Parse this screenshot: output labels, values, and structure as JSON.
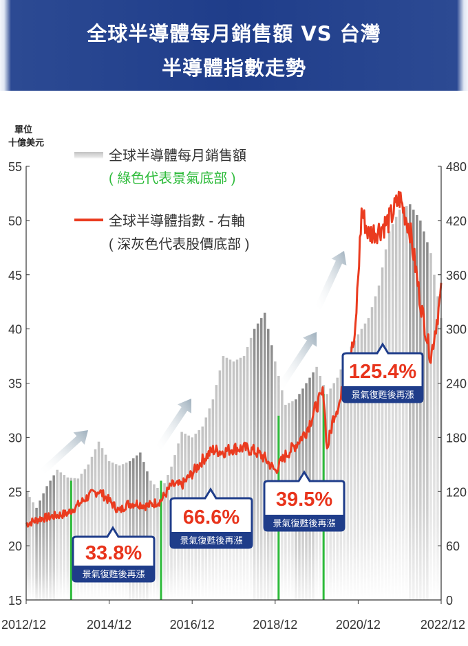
{
  "header": {
    "title_line1": "全球半導體每月銷售額 VS 台灣",
    "title_line2": "半導體指數走勢"
  },
  "colors": {
    "banner": "#1f3d8a",
    "bars": "#c9c9c9",
    "bars_dark": "#8f8f8f",
    "line": "#ea3b1f",
    "trough_green": "#2dbb3a",
    "badge_border": "#1f3d8a",
    "badge_text": "#e8341c",
    "arrow": "#a9b8c4"
  },
  "legend": {
    "bars_label": "全球半導體每月銷售額",
    "bars_note": "( 綠色代表景氣底部 )",
    "line_label": "全球半導體指數 - 右軸",
    "line_note": "( 深灰色代表股價底部 )"
  },
  "chart_data": {
    "type": "bar+line",
    "left_axis": {
      "unit_label": "單位\n十億美元",
      "ticks": [
        15,
        20,
        25,
        30,
        35,
        40,
        45,
        50,
        55
      ],
      "range": [
        15,
        55
      ]
    },
    "right_axis": {
      "ticks": [
        0,
        60,
        120,
        180,
        240,
        300,
        360,
        420,
        480
      ],
      "range": [
        0,
        480
      ]
    },
    "x_ticks": [
      "2012/12",
      "2014/12",
      "2016/12",
      "2018/12",
      "2020/12",
      "2022/12"
    ],
    "series": [
      {
        "name": "全球半導體每月銷售額",
        "axis": "left",
        "kind": "bar",
        "anchors": [
          [
            "2012-12",
            25.0
          ],
          [
            "2013-03",
            23.5
          ],
          [
            "2013-06",
            25.5
          ],
          [
            "2013-09",
            27.0
          ],
          [
            "2013-12",
            26.3
          ],
          [
            "2014-03",
            26.2
          ],
          [
            "2014-06",
            27.5
          ],
          [
            "2014-09",
            29.6
          ],
          [
            "2014-12",
            27.8
          ],
          [
            "2015-03",
            27.4
          ],
          [
            "2015-06",
            27.8
          ],
          [
            "2015-09",
            28.6
          ],
          [
            "2015-12",
            26.0
          ],
          [
            "2016-03",
            25.0
          ],
          [
            "2016-06",
            27.3
          ],
          [
            "2016-09",
            30.5
          ],
          [
            "2016-12",
            30.0
          ],
          [
            "2017-03",
            31.0
          ],
          [
            "2017-06",
            33.5
          ],
          [
            "2017-09",
            37.5
          ],
          [
            "2017-12",
            37.0
          ],
          [
            "2018-03",
            37.5
          ],
          [
            "2018-06",
            40.0
          ],
          [
            "2018-09",
            41.5
          ],
          [
            "2018-12",
            37.0
          ],
          [
            "2019-03",
            33.0
          ],
          [
            "2019-06",
            33.5
          ],
          [
            "2019-09",
            35.0
          ],
          [
            "2019-12",
            36.5
          ],
          [
            "2020-03",
            34.0
          ],
          [
            "2020-06",
            35.5
          ],
          [
            "2020-09",
            37.8
          ],
          [
            "2020-12",
            39.5
          ],
          [
            "2021-03",
            41.0
          ],
          [
            "2021-06",
            44.0
          ],
          [
            "2021-09",
            49.0
          ],
          [
            "2021-12",
            51.0
          ],
          [
            "2022-03",
            51.5
          ],
          [
            "2022-06",
            50.0
          ],
          [
            "2022-09",
            47.0
          ],
          [
            "2022-12",
            41.0
          ]
        ],
        "dark_bar_periods": [
          [
            "2013-03",
            "2013-08"
          ],
          [
            "2015-06",
            "2015-11"
          ],
          [
            "2018-06",
            "2018-11"
          ],
          [
            "2019-06",
            "2019-11"
          ],
          [
            "2022-03",
            "2022-08"
          ]
        ]
      },
      {
        "name": "全球半導體指數 - 右軸",
        "axis": "right",
        "kind": "line",
        "anchors": [
          [
            "2012-12",
            84
          ],
          [
            "2013-04",
            90
          ],
          [
            "2013-07",
            92
          ],
          [
            "2013-12",
            96
          ],
          [
            "2014-03",
            105
          ],
          [
            "2014-06",
            115
          ],
          [
            "2014-09",
            121
          ],
          [
            "2014-12",
            110
          ],
          [
            "2015-03",
            98
          ],
          [
            "2015-05",
            106
          ],
          [
            "2015-08",
            107
          ],
          [
            "2015-11",
            104
          ],
          [
            "2016-03",
            110
          ],
          [
            "2016-06",
            127
          ],
          [
            "2016-09",
            127
          ],
          [
            "2016-12",
            140
          ],
          [
            "2017-03",
            155
          ],
          [
            "2017-06",
            166
          ],
          [
            "2017-09",
            164
          ],
          [
            "2017-12",
            168
          ],
          [
            "2018-03",
            168
          ],
          [
            "2018-06",
            165
          ],
          [
            "2018-09",
            157
          ],
          [
            "2018-12",
            143
          ],
          [
            "2019-03",
            160
          ],
          [
            "2019-06",
            172
          ],
          [
            "2019-09",
            187
          ],
          [
            "2019-12",
            215
          ],
          [
            "2020-02",
            230
          ],
          [
            "2020-03",
            166
          ],
          [
            "2020-05",
            205
          ],
          [
            "2020-07",
            222
          ],
          [
            "2020-09",
            268
          ],
          [
            "2020-11",
            285
          ],
          [
            "2021-01",
            430
          ],
          [
            "2021-03",
            405
          ],
          [
            "2021-06",
            410
          ],
          [
            "2021-09",
            420
          ],
          [
            "2021-12",
            445
          ],
          [
            "2022-03",
            410
          ],
          [
            "2022-06",
            330
          ],
          [
            "2022-09",
            268
          ],
          [
            "2022-12",
            340
          ]
        ]
      }
    ],
    "trough_markers": [
      {
        "date": "2014-01",
        "level": 26.0
      },
      {
        "date": "2016-03",
        "level": 26.0
      },
      {
        "date": "2019-01",
        "level": 32.0
      },
      {
        "date": "2020-02",
        "level": 34.0
      }
    ],
    "annotations": [
      {
        "value": "33.8%",
        "caption": "景氣復甦後再漲"
      },
      {
        "value": "66.6%",
        "caption": "景氣復甦後再漲"
      },
      {
        "value": "39.5%",
        "caption": "景氣復甦後再漲"
      },
      {
        "value": "125.4%",
        "caption": "景氣復甦後再漲"
      }
    ]
  }
}
